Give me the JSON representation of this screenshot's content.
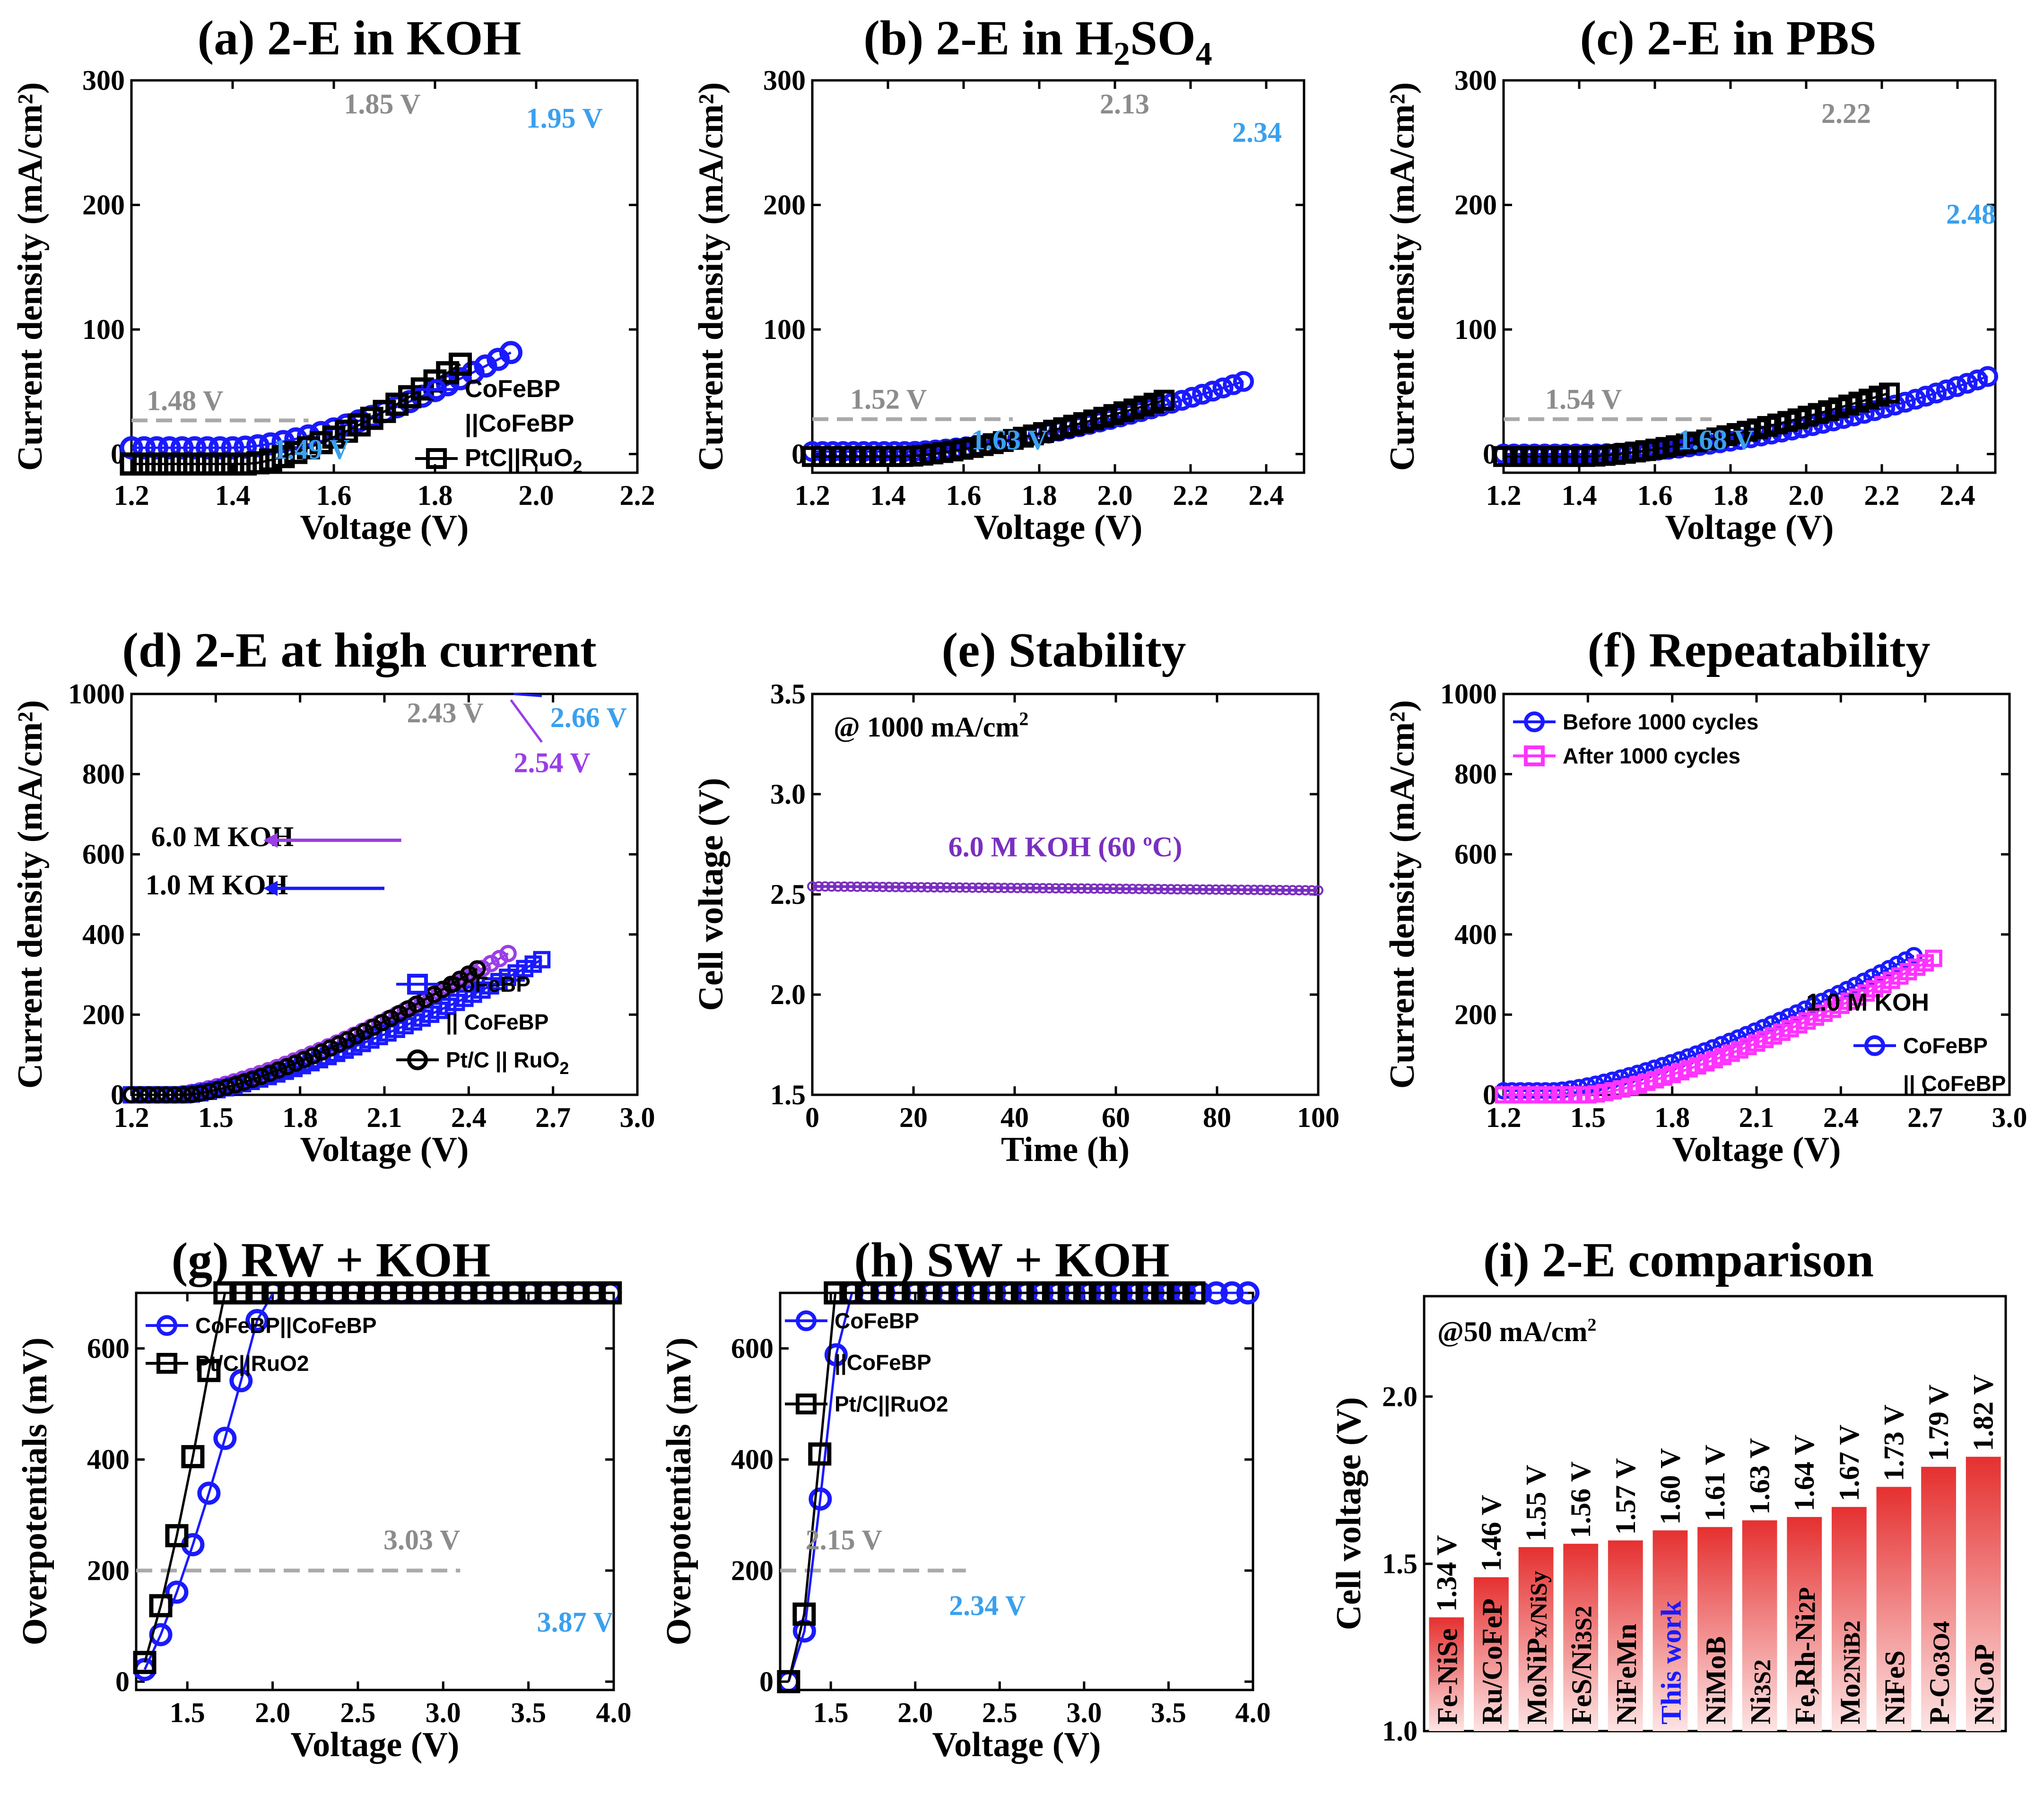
{
  "colors": {
    "blue": "#1a1aff",
    "black": "#000000",
    "purple": "#9a3ee6",
    "gray_text": "#8c8c8c",
    "blue_text": "#3aa0ee",
    "pink": "#ff33ff",
    "stab_purple": "#7a2fc0",
    "bar_red": "#e84a4a"
  },
  "chart_data": [
    {
      "id": "a",
      "type": "line",
      "title": "(a) 2-E in KOH",
      "xlabel": "Voltage (V)",
      "ylabel": "Current density (mA/cm²)",
      "xlim": [
        1.2,
        2.2
      ],
      "ylim": [
        -15,
        300
      ],
      "xticks": [
        1.2,
        1.4,
        1.6,
        1.8,
        2.0,
        2.2
      ],
      "yticks": [
        0,
        100,
        200,
        300
      ],
      "series": [
        {
          "name": "CoFeBP ||CoFeBP",
          "marker": "circle",
          "color": "#1a1aff",
          "x0": 1.2,
          "x1": 1.95,
          "onset": 1.4,
          "k": 5,
          "p": 1.6,
          "n": 31,
          "y0": 5
        },
        {
          "name": "PtC||RuO2",
          "marker": "square",
          "color": "#000000",
          "x0": 1.2,
          "x1": 1.85,
          "onset": 1.43,
          "k": 10,
          "p": 1.45,
          "n": 27,
          "y0": -8
        }
      ],
      "legend": [
        {
          "label": "CoFeBP",
          "marker": "circle",
          "color": "#1a1aff"
        },
        {
          "label": "||CoFeBP",
          "marker": "none",
          "color": "#000000"
        },
        {
          "label": "PtC||RuO",
          "sub": "2",
          "marker": "square",
          "color": "#000000"
        }
      ],
      "annotations": [
        {
          "text": "1.85 V",
          "color": "#8c8c8c"
        },
        {
          "text": "1.95 V",
          "color": "#3aa0ee"
        },
        {
          "text": "1.48 V",
          "color": "#8c8c8c"
        },
        {
          "text": "1.49 V",
          "color": "#3aa0ee"
        }
      ],
      "dashed_y": 27
    },
    {
      "id": "b",
      "type": "line",
      "title": "(b) 2-E in H",
      "title_parts": [
        "2",
        "SO",
        "4"
      ],
      "xlabel": "Voltage (V)",
      "ylabel": "Current density (mA/cm²)",
      "xlim": [
        1.2,
        2.5
      ],
      "ylim": [
        -15,
        300
      ],
      "xticks": [
        1.2,
        1.4,
        1.6,
        1.8,
        2.0,
        2.2,
        2.4
      ],
      "yticks": [
        0,
        100,
        200,
        300
      ],
      "series": [
        {
          "name": "CoFeBP ||CoFeBP",
          "marker": "circle",
          "color": "#1a1aff",
          "x0": 1.2,
          "x1": 2.34,
          "onset": 1.45,
          "k": 1.9,
          "p": 1.55,
          "n": 43,
          "y0": 2
        },
        {
          "name": "PtC||RuO2",
          "marker": "square",
          "color": "#000000",
          "x0": 1.2,
          "x1": 2.13,
          "onset": 1.45,
          "k": 3.4,
          "p": 1.35,
          "n": 36,
          "y0": -2
        }
      ],
      "annotations": [
        {
          "text": "2.13",
          "color": "#8c8c8c"
        },
        {
          "text": "2.34",
          "color": "#3aa0ee"
        },
        {
          "text": "1.52 V",
          "color": "#8c8c8c"
        },
        {
          "text": "1.63 V",
          "color": "#3aa0ee"
        }
      ],
      "dashed_y": 28
    },
    {
      "id": "c",
      "type": "line",
      "title": "(c) 2-E in PBS",
      "xlabel": "Voltage (V)",
      "ylabel": "Current density (mA/cm²)",
      "xlim": [
        1.2,
        2.5
      ],
      "ylim": [
        -15,
        300
      ],
      "xticks": [
        1.2,
        1.4,
        1.6,
        1.8,
        2.0,
        2.2,
        2.4
      ],
      "yticks": [
        0,
        100,
        200,
        300
      ],
      "series": [
        {
          "name": "CoFeBP ||CoFeBP",
          "marker": "circle",
          "color": "#1a1aff",
          "x0": 1.2,
          "x1": 2.48,
          "onset": 1.42,
          "k": 1.0,
          "p": 1.75,
          "n": 48,
          "y0": 0
        },
        {
          "name": "PtC||RuO2",
          "marker": "square",
          "color": "#000000",
          "x0": 1.2,
          "x1": 2.22,
          "onset": 1.42,
          "k": 2.5,
          "p": 1.45,
          "n": 39,
          "y0": -2
        }
      ],
      "annotations": [
        {
          "text": "2.22",
          "color": "#8c8c8c"
        },
        {
          "text": "2.48",
          "color": "#3aa0ee"
        },
        {
          "text": "1.54 V",
          "color": "#8c8c8c"
        },
        {
          "text": "1.68 V",
          "color": "#3aa0ee"
        }
      ],
      "dashed_y": 28
    },
    {
      "id": "d",
      "type": "line",
      "title": "(d) 2-E at high current",
      "xlabel": "Voltage (V)",
      "ylabel": "Current density (mA/cm²)",
      "xlim": [
        1.2,
        3.0
      ],
      "ylim": [
        0,
        1000
      ],
      "xticks": [
        1.2,
        1.5,
        1.8,
        2.1,
        2.4,
        2.7,
        3.0
      ],
      "yticks": [
        0,
        200,
        400,
        600,
        800,
        1000
      ],
      "series": [
        {
          "name": "6.0 M KOH",
          "marker": "circle",
          "color": "#9a3ee6",
          "x0": 1.2,
          "x1": 2.54,
          "onset": 1.35,
          "k": 11,
          "p": 1.4,
          "n": 45,
          "y0": 0
        },
        {
          "name": "CoFeBP || CoFeBP",
          "marker": "square",
          "color": "#1a1aff",
          "x0": 1.2,
          "x1": 2.66,
          "onset": 1.38,
          "k": 9.5,
          "p": 1.4,
          "n": 49,
          "y0": 0
        },
        {
          "name": "Pt/C || RuO2",
          "marker": "circle",
          "color": "#000000",
          "x0": 1.2,
          "x1": 2.43,
          "onset": 1.4,
          "k": 12,
          "p": 1.4,
          "n": 41,
          "y0": 0
        }
      ],
      "legend": [
        {
          "label": "CoFeBP",
          "marker": "square",
          "color": "#1a1aff"
        },
        {
          "label": "|| CoFeBP",
          "marker": "none",
          "color": "#000000"
        },
        {
          "label": "Pt/C || RuO",
          "sub": "2",
          "marker": "circle",
          "color": "#000000"
        }
      ],
      "annotations": [
        {
          "text": "2.43 V",
          "color": "#8c8c8c"
        },
        {
          "text": "2.66 V",
          "color": "#3aa0ee"
        },
        {
          "text": "2.54 V",
          "color": "#9a3ee6"
        },
        {
          "text": "6.0 M KOH",
          "color": "#000000"
        },
        {
          "text": "1.0 M KOH",
          "color": "#000000"
        }
      ]
    },
    {
      "id": "e",
      "type": "line",
      "title": "(e) Stability",
      "xlabel": "Time (h)",
      "ylabel": "Cell voltage (V)",
      "xlim": [
        0,
        100
      ],
      "ylim": [
        1.5,
        3.5
      ],
      "xticks": [
        0,
        20,
        40,
        60,
        80,
        100
      ],
      "yticks": [
        1.5,
        2.0,
        2.5,
        3.0,
        3.5
      ],
      "series": [
        {
          "name": "6.0 M KOH (60 ºC)",
          "marker": "circle",
          "color": "#7a2fc0",
          "start": 2.54,
          "end": 2.52,
          "n": 80
        }
      ],
      "annotations": [
        {
          "text": "@ 1000 mA/cm",
          "sup": "2",
          "color": "#000000"
        },
        {
          "text": "6.0 M KOH (60 ºC)",
          "color": "#7a2fc0"
        }
      ]
    },
    {
      "id": "f",
      "type": "line",
      "title": "(f) Repeatability",
      "xlabel": "Voltage (V)",
      "ylabel": "Current density (mA/cm²)",
      "xlim": [
        1.2,
        3.0
      ],
      "ylim": [
        0,
        1000
      ],
      "xticks": [
        1.2,
        1.5,
        1.8,
        2.1,
        2.4,
        2.7,
        3.0
      ],
      "yticks": [
        0,
        200,
        400,
        600,
        800,
        1000
      ],
      "series": [
        {
          "name": "Before 1000 cycles",
          "marker": "circle",
          "color": "#1a1aff",
          "x0": 1.2,
          "x1": 2.66,
          "onset": 1.38,
          "k": 9.5,
          "p": 1.4,
          "n": 50,
          "y0": 10
        },
        {
          "name": "After 1000 cycles",
          "marker": "square",
          "color": "#ff33ff",
          "x0": 1.2,
          "x1": 2.73,
          "onset": 1.5,
          "k": 11.5,
          "p": 1.35,
          "n": 52,
          "y0": 0
        }
      ],
      "legend": [
        {
          "label": "Before 1000 cycles",
          "marker": "circle",
          "color": "#1a1aff"
        },
        {
          "label": "After 1000 cycles",
          "marker": "square",
          "color": "#ff33ff"
        }
      ],
      "legend2": [
        {
          "label": "1.0 M KOH",
          "marker": "none",
          "color": "#000000"
        },
        {
          "label": "CoFeBP",
          "marker": "circle",
          "color": "#1a1aff"
        },
        {
          "label": "|| CoFeBP",
          "marker": "none",
          "color": "#000000"
        }
      ]
    },
    {
      "id": "g",
      "type": "line",
      "title": "(g) RW + KOH",
      "xlabel": "Voltage (V)",
      "ylabel": "Overpotentials (mV)",
      "xlim": [
        1.2,
        4.0
      ],
      "ylim": [
        -15,
        700
      ],
      "xticks": [
        1.5,
        2.0,
        2.5,
        3.0,
        3.5,
        4.0
      ],
      "yticks": [
        0,
        200,
        400,
        600
      ],
      "series": [
        {
          "name": "CoFeBP||CoFeBP",
          "marker": "circle",
          "color": "#1a1aff",
          "x0": 1.25,
          "x1": 3.98,
          "onset": 1.2,
          "k": 53,
          "p": 1.28,
          "n": 30,
          "y0": 0
        },
        {
          "name": "Pt/C||RuO2",
          "marker": "square",
          "color": "#000000",
          "x0": 1.25,
          "x1": 3.98,
          "onset": 1.2,
          "k": 85,
          "p": 1.3,
          "n": 30,
          "y0": 0
        }
      ],
      "legend": [
        {
          "label": "CoFeBP||CoFeBP",
          "marker": "circle",
          "color": "#1a1aff"
        },
        {
          "label": "Pt/C||RuO2",
          "marker": "square",
          "color": "#000000"
        }
      ],
      "annotations": [
        {
          "text": "3.03 V",
          "color": "#8c8c8c"
        },
        {
          "text": "3.87 V",
          "color": "#3aa0ee"
        }
      ],
      "dashed_y": 200
    },
    {
      "id": "h",
      "type": "line",
      "title": "(h) SW + KOH",
      "xlabel": "Voltage (V)",
      "ylabel": "Overpotentials (mV)",
      "xlim": [
        1.2,
        4.0
      ],
      "ylim": [
        -15,
        700
      ],
      "xticks": [
        1.5,
        2.0,
        2.5,
        3.0,
        3.5,
        4.0
      ],
      "yticks": [
        0,
        200,
        400,
        600
      ],
      "series": [
        {
          "name": "CoFeBP ||CoFeBP",
          "marker": "circle",
          "color": "#1a1aff",
          "x0": 1.25,
          "x1": 3.97,
          "onset": 1.3,
          "k": 230,
          "p": 1.12,
          "n": 30,
          "y0": 0
        },
        {
          "name": "Pt/C||RuO2",
          "marker": "square",
          "color": "#000000",
          "x0": 1.25,
          "x1": 3.65,
          "onset": 1.3,
          "k": 300,
          "p": 1.05,
          "n": 27,
          "y0": 0
        }
      ],
      "legend": [
        {
          "label": "CoFeBP",
          "marker": "circle",
          "color": "#1a1aff"
        },
        {
          "label": "||CoFeBP",
          "marker": "none",
          "color": "#000000"
        },
        {
          "label": "Pt/C||RuO2",
          "marker": "square",
          "color": "#000000"
        }
      ],
      "annotations": [
        {
          "text": "2.15 V",
          "color": "#8c8c8c"
        },
        {
          "text": "2.34 V",
          "color": "#3aa0ee"
        }
      ],
      "dashed_y": 200
    },
    {
      "id": "i",
      "type": "bar",
      "title": "(i) 2-E comparison",
      "ylabel": "Cell voltage (V)",
      "ylim": [
        1.0,
        2.3
      ],
      "yticks": [
        1.0,
        1.5,
        2.0
      ],
      "note": "@50 mA/cm",
      "note_sup": "2",
      "categories": [
        "Fe-NiSe",
        "Ru/CoFeP",
        "MoNiP",
        "FeS/Ni",
        "NiFeMn",
        "This work",
        "NiMoB",
        "Ni",
        "Fe,Rh-Ni",
        "Mo",
        "NiFeS",
        "P-Co",
        "NiCoP"
      ],
      "category_suffix": [
        "",
        "",
        "x/NiSy",
        "3S2",
        "",
        "",
        "",
        "3S2",
        "2P",
        "2NiB2",
        "",
        "3O4",
        ""
      ],
      "values": [
        1.34,
        1.46,
        1.55,
        1.56,
        1.57,
        1.6,
        1.61,
        1.63,
        1.64,
        1.67,
        1.73,
        1.79,
        1.82
      ],
      "value_labels": [
        "1.34 V",
        "1.46 V",
        "1.55 V",
        "1.56 V",
        "1.57 V",
        "1.60 V",
        "1.61 V",
        "1.63 V",
        "1.64 V",
        "1.67 V",
        "1.73 V",
        "1.79 V",
        "1.82 V"
      ]
    }
  ]
}
